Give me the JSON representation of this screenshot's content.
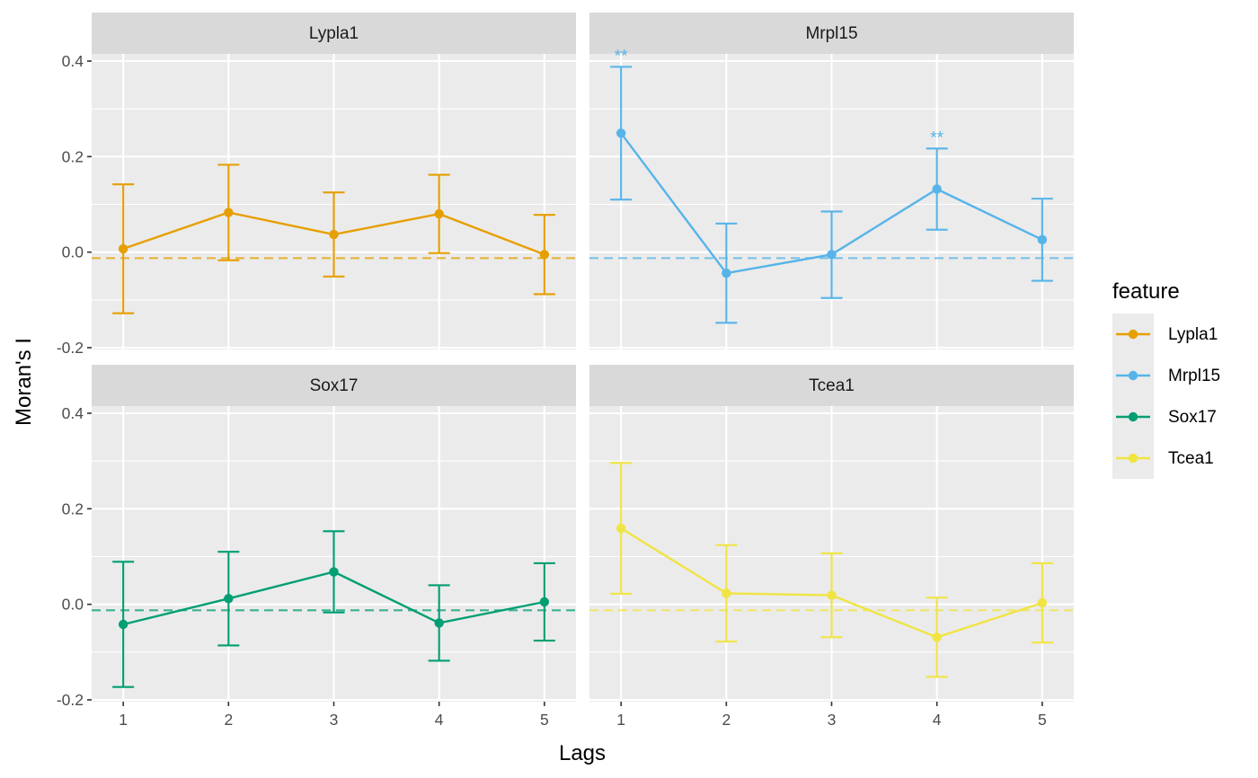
{
  "chart_data": {
    "type": "line",
    "facet_by": "feature",
    "facet_layout": "2x2",
    "xlabel": "Lags",
    "ylabel": "Moran's I",
    "x": [
      1,
      2,
      3,
      4,
      5
    ],
    "x_ticks": [
      "1",
      "2",
      "3",
      "4",
      "5"
    ],
    "ylim": [
      -0.2,
      0.4
    ],
    "y_ticks": [
      "-0.2",
      "0.0",
      "0.2",
      "0.4"
    ],
    "grid": true,
    "expected_value_line": -0.0125,
    "legend": {
      "title": "feature",
      "position": "right"
    },
    "panels": [
      {
        "name": "Lypla1",
        "color": "#E69F00",
        "values": [
          0.007,
          0.083,
          0.037,
          0.08,
          -0.005
        ],
        "lower": [
          -0.128,
          -0.017,
          -0.051,
          -0.002,
          -0.088
        ],
        "upper": [
          0.142,
          0.183,
          0.125,
          0.162,
          0.078
        ],
        "significance": [
          "",
          "",
          "",
          "",
          ""
        ]
      },
      {
        "name": "Mrpl15",
        "color": "#56B4E9",
        "values": [
          0.249,
          -0.044,
          -0.005,
          0.132,
          0.026
        ],
        "lower": [
          0.11,
          -0.148,
          -0.096,
          0.047,
          -0.06
        ],
        "upper": [
          0.388,
          0.06,
          0.085,
          0.217,
          0.112
        ],
        "significance": [
          "**",
          "",
          "",
          "**",
          ""
        ]
      },
      {
        "name": "Sox17",
        "color": "#009E73",
        "values": [
          -0.042,
          0.012,
          0.068,
          -0.039,
          0.005
        ],
        "lower": [
          -0.173,
          -0.086,
          -0.017,
          -0.118,
          -0.076
        ],
        "upper": [
          0.089,
          0.11,
          0.153,
          0.04,
          0.086
        ],
        "significance": [
          "",
          "",
          "",
          "",
          ""
        ]
      },
      {
        "name": "Tcea1",
        "color": "#F0E442",
        "values": [
          0.159,
          0.023,
          0.019,
          -0.069,
          0.003
        ],
        "lower": [
          0.022,
          -0.078,
          -0.069,
          -0.152,
          -0.08
        ],
        "upper": [
          0.296,
          0.124,
          0.107,
          0.014,
          0.086
        ],
        "significance": [
          "",
          "",
          "",
          "",
          ""
        ]
      }
    ]
  }
}
